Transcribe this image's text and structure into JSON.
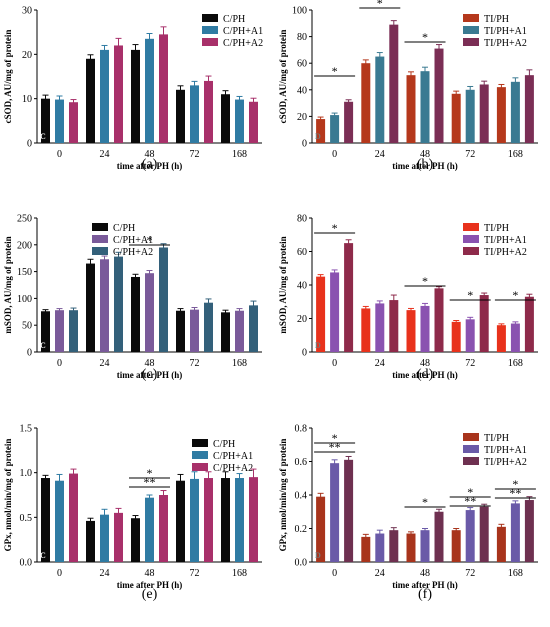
{
  "chart_data": [
    {
      "type": "bar",
      "panel_label": "(a)",
      "categories": [
        "0",
        "24",
        "48",
        "72",
        "168"
      ],
      "xlabel": "time after PH (h)",
      "ylabel": "cSOD, AU/mg of protein",
      "ylim": [
        0,
        30
      ],
      "yticks": [
        "0",
        "10",
        "20",
        "30"
      ],
      "inner_label": "C",
      "legend_position": "top-right",
      "grid": false,
      "series": [
        {
          "name": "C/PH",
          "color": "#0a0a0a",
          "values": [
            10,
            19,
            21,
            12,
            11
          ],
          "errors": [
            0.8,
            0.9,
            1.2,
            0.9,
            0.8
          ]
        },
        {
          "name": "C/PH+A1",
          "color": "#2f7ba3",
          "values": [
            9.8,
            21,
            23.5,
            13,
            9.8
          ],
          "errors": [
            0.8,
            1.0,
            1.2,
            0.9,
            0.7
          ]
        },
        {
          "name": "C/PH+A2",
          "color": "#a8306a",
          "values": [
            9.2,
            22,
            24.5,
            14,
            9.3
          ],
          "errors": [
            0.6,
            1.6,
            1.7,
            1.1,
            0.8
          ]
        }
      ],
      "significance": []
    },
    {
      "type": "bar",
      "panel_label": "(b)",
      "categories": [
        "0",
        "24",
        "48",
        "72",
        "168"
      ],
      "xlabel": "time after PH (h)",
      "ylabel": "cSOD, AU/mg of protein",
      "ylim": [
        0,
        100
      ],
      "yticks": [
        "0",
        "20",
        "40",
        "60",
        "80",
        "100"
      ],
      "inner_label": "D",
      "legend_position": "top-right",
      "grid": false,
      "series": [
        {
          "name": "TI/PH",
          "color": "#b5381c",
          "values": [
            18,
            60,
            51,
            37,
            42
          ],
          "errors": [
            1.5,
            2.5,
            2.5,
            2.0,
            2.0
          ]
        },
        {
          "name": "TI/PH+A1",
          "color": "#3a7a92",
          "values": [
            21,
            65,
            54,
            40,
            46
          ],
          "errors": [
            1.5,
            3.0,
            3.0,
            2.5,
            3.0
          ]
        },
        {
          "name": "TI/PH+A2",
          "color": "#7b2e55",
          "values": [
            31,
            89,
            71,
            44,
            51
          ],
          "errors": [
            1.5,
            3.0,
            3.0,
            2.5,
            4.0
          ]
        }
      ],
      "significance": [
        {
          "category": "0",
          "labels": [
            "*"
          ]
        },
        {
          "category": "24",
          "labels": [
            "*"
          ]
        },
        {
          "category": "48",
          "labels": [
            "*"
          ]
        }
      ]
    },
    {
      "type": "bar",
      "panel_label": "(c)",
      "categories": [
        "0",
        "24",
        "48",
        "72",
        "168"
      ],
      "xlabel": "time after PH (h)",
      "ylabel": "mSOD, AU/mg of protein",
      "ylim": [
        0,
        250
      ],
      "yticks": [
        "0",
        "50",
        "100",
        "150",
        "200",
        "250"
      ],
      "inner_label": "C",
      "legend_position": "top-left",
      "grid": false,
      "series": [
        {
          "name": "C/PH",
          "color": "#0a0a0a",
          "values": [
            76,
            165,
            140,
            77,
            74
          ],
          "errors": [
            3,
            8,
            5,
            4,
            4
          ]
        },
        {
          "name": "C/PH+A1",
          "color": "#7a5a9a",
          "values": [
            78,
            173,
            147,
            79,
            77
          ],
          "errors": [
            3,
            6,
            5,
            4,
            4
          ]
        },
        {
          "name": "C/PH+A2",
          "color": "#33607a",
          "values": [
            78,
            178,
            195,
            92,
            87
          ],
          "errors": [
            4,
            8,
            7,
            7,
            8
          ]
        }
      ],
      "significance": [
        {
          "category": "48",
          "labels": [
            "*"
          ]
        }
      ]
    },
    {
      "type": "bar",
      "panel_label": "(d)",
      "categories": [
        "0",
        "24",
        "48",
        "72",
        "168"
      ],
      "xlabel": "time after PH (h)",
      "ylabel": "mSOD, AU/mg of protein",
      "ylim": [
        0,
        80
      ],
      "yticks": [
        "0",
        "20",
        "40",
        "60",
        "80"
      ],
      "inner_label": "D",
      "legend_position": "top-right",
      "grid": false,
      "series": [
        {
          "name": "TI/PH",
          "color": "#e8321c",
          "values": [
            45,
            26,
            25,
            18,
            16
          ],
          "errors": [
            1.2,
            1.2,
            1.0,
            0.8,
            0.8
          ]
        },
        {
          "name": "TI/PH+A1",
          "color": "#8a52b0",
          "values": [
            47.5,
            29,
            27.5,
            19.5,
            17
          ],
          "errors": [
            1.5,
            1.5,
            1.5,
            1.2,
            1.0
          ]
        },
        {
          "name": "TI/PH+A2",
          "color": "#8e2a4a",
          "values": [
            65,
            31,
            38,
            34,
            33
          ],
          "errors": [
            2.0,
            3.0,
            1.0,
            1.2,
            1.5
          ]
        }
      ],
      "significance": [
        {
          "category": "0",
          "labels": [
            "*"
          ]
        },
        {
          "category": "48",
          "labels": [
            "*"
          ]
        },
        {
          "category": "72",
          "labels": [
            "*"
          ]
        },
        {
          "category": "168",
          "labels": [
            "*"
          ]
        }
      ]
    },
    {
      "type": "bar",
      "panel_label": "(e)",
      "categories": [
        "0",
        "24",
        "48",
        "72",
        "168"
      ],
      "xlabel": "time after PH (h)",
      "ylabel": "GPx, nmol/min/mg of protein",
      "ylim": [
        0,
        1.5
      ],
      "yticks": [
        "0.0",
        "0.5",
        "1.0",
        "1.5"
      ],
      "inner_label": "C",
      "legend_position": "top-right",
      "grid": false,
      "series": [
        {
          "name": "C/PH",
          "color": "#0a0a0a",
          "values": [
            0.94,
            0.46,
            0.49,
            0.91,
            0.94
          ],
          "errors": [
            0.03,
            0.03,
            0.03,
            0.07,
            0.07
          ]
        },
        {
          "name": "C/PH+A1",
          "color": "#2f7ba3",
          "values": [
            0.91,
            0.53,
            0.72,
            0.93,
            0.94
          ],
          "errors": [
            0.07,
            0.06,
            0.03,
            0.08,
            0.05
          ]
        },
        {
          "name": "C/PH+A2",
          "color": "#a8306a",
          "values": [
            0.99,
            0.55,
            0.75,
            0.94,
            0.95
          ],
          "errors": [
            0.05,
            0.05,
            0.05,
            0.07,
            0.09
          ]
        }
      ],
      "significance": [
        {
          "category": "48",
          "labels": [
            "*",
            "**"
          ]
        }
      ]
    },
    {
      "type": "bar",
      "panel_label": "(f)",
      "categories": [
        "0",
        "24",
        "48",
        "72",
        "168"
      ],
      "xlabel": "time after PH (h)",
      "ylabel": "GPx, nmol/min/mg of protein",
      "ylim": [
        0,
        0.8
      ],
      "yticks": [
        "0.0",
        "0.2",
        "0.4",
        "0.6",
        "0.8"
      ],
      "inner_label": "D",
      "legend_position": "top-right",
      "grid": false,
      "series": [
        {
          "name": "TI/PH",
          "color": "#a8341c",
          "values": [
            0.39,
            0.15,
            0.17,
            0.19,
            0.21
          ],
          "errors": [
            0.02,
            0.015,
            0.01,
            0.01,
            0.015
          ]
        },
        {
          "name": "TI/PH+A1",
          "color": "#6a5aa8",
          "values": [
            0.59,
            0.17,
            0.19,
            0.31,
            0.35
          ],
          "errors": [
            0.02,
            0.02,
            0.01,
            0.015,
            0.015
          ]
        },
        {
          "name": "TI/PH+A2",
          "color": "#6e3050",
          "values": [
            0.61,
            0.19,
            0.3,
            0.33,
            0.37
          ],
          "errors": [
            0.02,
            0.015,
            0.015,
            0.015,
            0.02
          ]
        }
      ],
      "significance": [
        {
          "category": "0",
          "labels": [
            "*",
            "**"
          ]
        },
        {
          "category": "48",
          "labels": [
            "*"
          ]
        },
        {
          "category": "72",
          "labels": [
            "*",
            "**"
          ]
        },
        {
          "category": "168",
          "labels": [
            "*",
            "**"
          ]
        }
      ]
    }
  ]
}
